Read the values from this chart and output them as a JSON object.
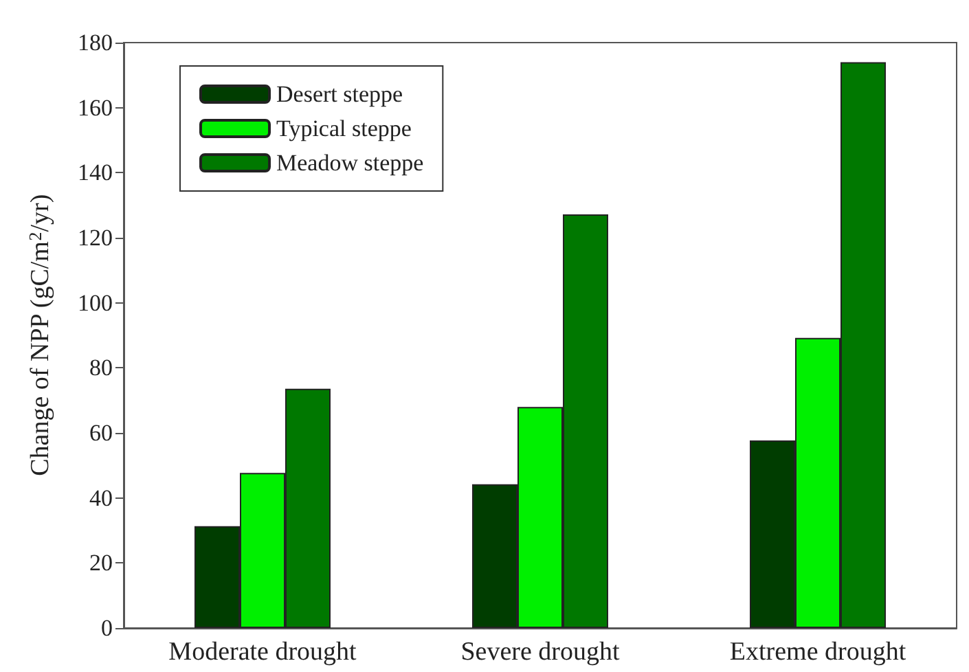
{
  "chart_data": {
    "type": "bar",
    "ylabel": "Change of NPP (gC/m$^{2}$/yr)",
    "categories": [
      "Moderate drought",
      "Severe drought",
      "Extreme drought"
    ],
    "series": [
      {
        "name": "Desert steppe",
        "color": "#003d00",
        "values": [
          31.3,
          44.2,
          57.7
        ]
      },
      {
        "name": "Typical steppe",
        "color": "#00f000",
        "values": [
          47.7,
          68.0,
          89.2
        ]
      },
      {
        "name": "Meadow steppe",
        "color": "#007800",
        "values": [
          73.6,
          127.2,
          174.0
        ]
      }
    ],
    "ylim": [
      0,
      180
    ],
    "yticks": [
      0,
      20,
      40,
      60,
      80,
      100,
      120,
      140,
      160,
      180
    ],
    "grid": false,
    "legend": "top left"
  }
}
